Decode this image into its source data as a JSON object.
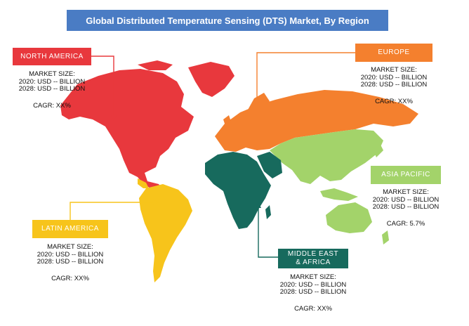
{
  "title": "Global Distributed Temperature Sensing (DTS) Market, By Region",
  "colors": {
    "title_bg": "#4a7cc4",
    "north_america": "#e8383d",
    "europe": "#f4802e",
    "asia_pacific": "#a3d36a",
    "latin_america": "#f7c41b",
    "middle_east_africa": "#176a5d"
  },
  "regions": {
    "north_america": {
      "label": "NORTH AMERICA",
      "heading": "MARKET SIZE:",
      "line_2020": "2020: USD -- BILLION",
      "line_2028": "2028: USD -- BILLION",
      "cagr": "CAGR: XX%"
    },
    "europe": {
      "label": "EUROPE",
      "heading": "MARKET SIZE:",
      "line_2020": "2020: USD -- BILLION",
      "line_2028": "2028: USD -- BILLION",
      "cagr": "CAGR: XX%"
    },
    "asia_pacific": {
      "label": "ASIA PACIFIC",
      "heading": "MARKET SIZE:",
      "line_2020": "2020: USD -- BILLION",
      "line_2028": "2028: USD -- BILLION",
      "cagr": "CAGR: 5.7%"
    },
    "latin_america": {
      "label": "LATIN AMERICA",
      "heading": "MARKET SIZE:",
      "line_2020": "2020: USD -- BILLION",
      "line_2028": "2028: USD -- BILLION",
      "cagr": "CAGR: XX%"
    },
    "middle_east_africa": {
      "label_line1": "MIDDLE EAST",
      "label_line2": "& AFRICA",
      "heading": "MARKET SIZE:",
      "line_2020": "2020: USD -- BILLION",
      "line_2028": "2028: USD -- BILLION",
      "cagr": "CAGR: XX%"
    }
  }
}
